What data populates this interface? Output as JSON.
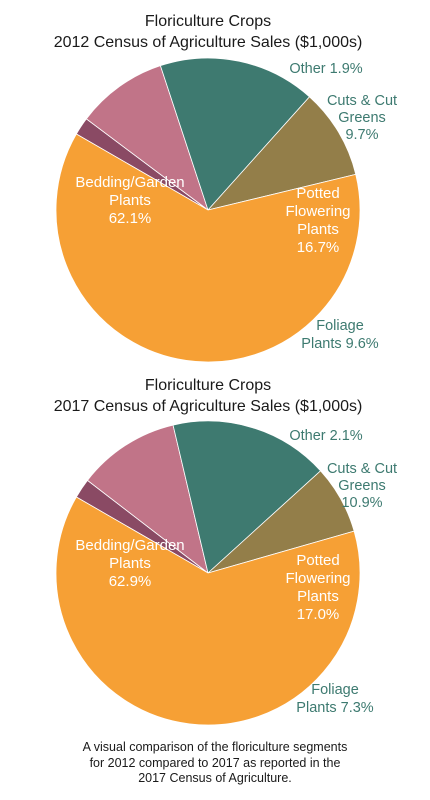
{
  "colors": {
    "bedding": "#f6a035",
    "foliage": "#937e49",
    "potted": "#3e7a70",
    "cuts": "#c17488",
    "other": "#8a4a64",
    "outside_label": "#3d7a70"
  },
  "chart_data": [
    {
      "type": "pie",
      "title": [
        "Floriculture Crops",
        "2012 Census of Agriculture Sales ($1,000s)"
      ],
      "slices": [
        {
          "key": "other",
          "label_lines": [
            "Other 1.9%"
          ],
          "value": 1.9
        },
        {
          "key": "cuts",
          "label_lines": [
            "Cuts & Cut",
            "Greens",
            "9.7%"
          ],
          "value": 9.7
        },
        {
          "key": "potted",
          "label_lines": [
            "Potted",
            "Flowering",
            "Plants",
            "16.7%"
          ],
          "value": 16.7
        },
        {
          "key": "foliage",
          "label_lines": [
            "Foliage",
            "Plants 9.6%"
          ],
          "value": 9.6
        },
        {
          "key": "bedding",
          "label_lines": [
            "Bedding/Garden",
            "Plants",
            "62.1%"
          ],
          "value": 62.1
        }
      ]
    },
    {
      "type": "pie",
      "title": [
        "Floriculture Crops",
        "2017 Census of Agriculture Sales ($1,000s)"
      ],
      "slices": [
        {
          "key": "other",
          "label_lines": [
            "Other 2.1%"
          ],
          "value": 2.1
        },
        {
          "key": "cuts",
          "label_lines": [
            "Cuts & Cut",
            "Greens",
            "10.9%"
          ],
          "value": 10.9
        },
        {
          "key": "potted",
          "label_lines": [
            "Potted",
            "Flowering",
            "Plants",
            "17.0%"
          ],
          "value": 17.0
        },
        {
          "key": "foliage",
          "label_lines": [
            "Foliage",
            "Plants 7.3%"
          ],
          "value": 7.3
        },
        {
          "key": "bedding",
          "label_lines": [
            "Bedding/Garden",
            "Plants",
            "62.9%"
          ],
          "value": 62.9
        }
      ]
    }
  ],
  "caption": [
    "A visual comparison of the floriculture segments",
    "for 2012 compared to 2017 as reported in the",
    "2017 Census of Agriculture."
  ]
}
